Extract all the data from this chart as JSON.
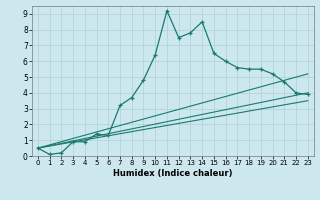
{
  "title": "",
  "xlabel": "Humidex (Indice chaleur)",
  "bg_color": "#cce8ee",
  "line_color": "#1a7a6e",
  "grid_color": "#b0d5d8",
  "xlim": [
    -0.5,
    23.5
  ],
  "ylim": [
    0,
    9.5
  ],
  "xticks": [
    0,
    1,
    2,
    3,
    4,
    5,
    6,
    7,
    8,
    9,
    10,
    11,
    12,
    13,
    14,
    15,
    16,
    17,
    18,
    19,
    20,
    21,
    22,
    23
  ],
  "yticks": [
    0,
    1,
    2,
    3,
    4,
    5,
    6,
    7,
    8,
    9
  ],
  "line1_x": [
    0,
    1,
    2,
    3,
    4,
    5,
    6,
    7,
    8,
    9,
    10,
    11,
    12,
    13,
    14,
    15,
    16,
    17,
    18,
    19,
    20,
    21,
    22,
    23
  ],
  "line1_y": [
    0.5,
    0.1,
    0.2,
    0.9,
    0.9,
    1.4,
    1.3,
    3.2,
    3.7,
    4.8,
    6.4,
    9.2,
    7.5,
    7.8,
    8.5,
    6.5,
    6.0,
    5.6,
    5.5,
    5.5,
    5.2,
    4.7,
    4.0,
    3.9
  ],
  "line2_x": [
    0,
    23
  ],
  "line2_y": [
    0.5,
    5.2
  ],
  "line3_x": [
    0,
    23
  ],
  "line3_y": [
    0.5,
    4.0
  ],
  "line4_x": [
    0,
    23
  ],
  "line4_y": [
    0.5,
    3.5
  ],
  "tick_fontsize": 5.0,
  "xlabel_fontsize": 6.0
}
